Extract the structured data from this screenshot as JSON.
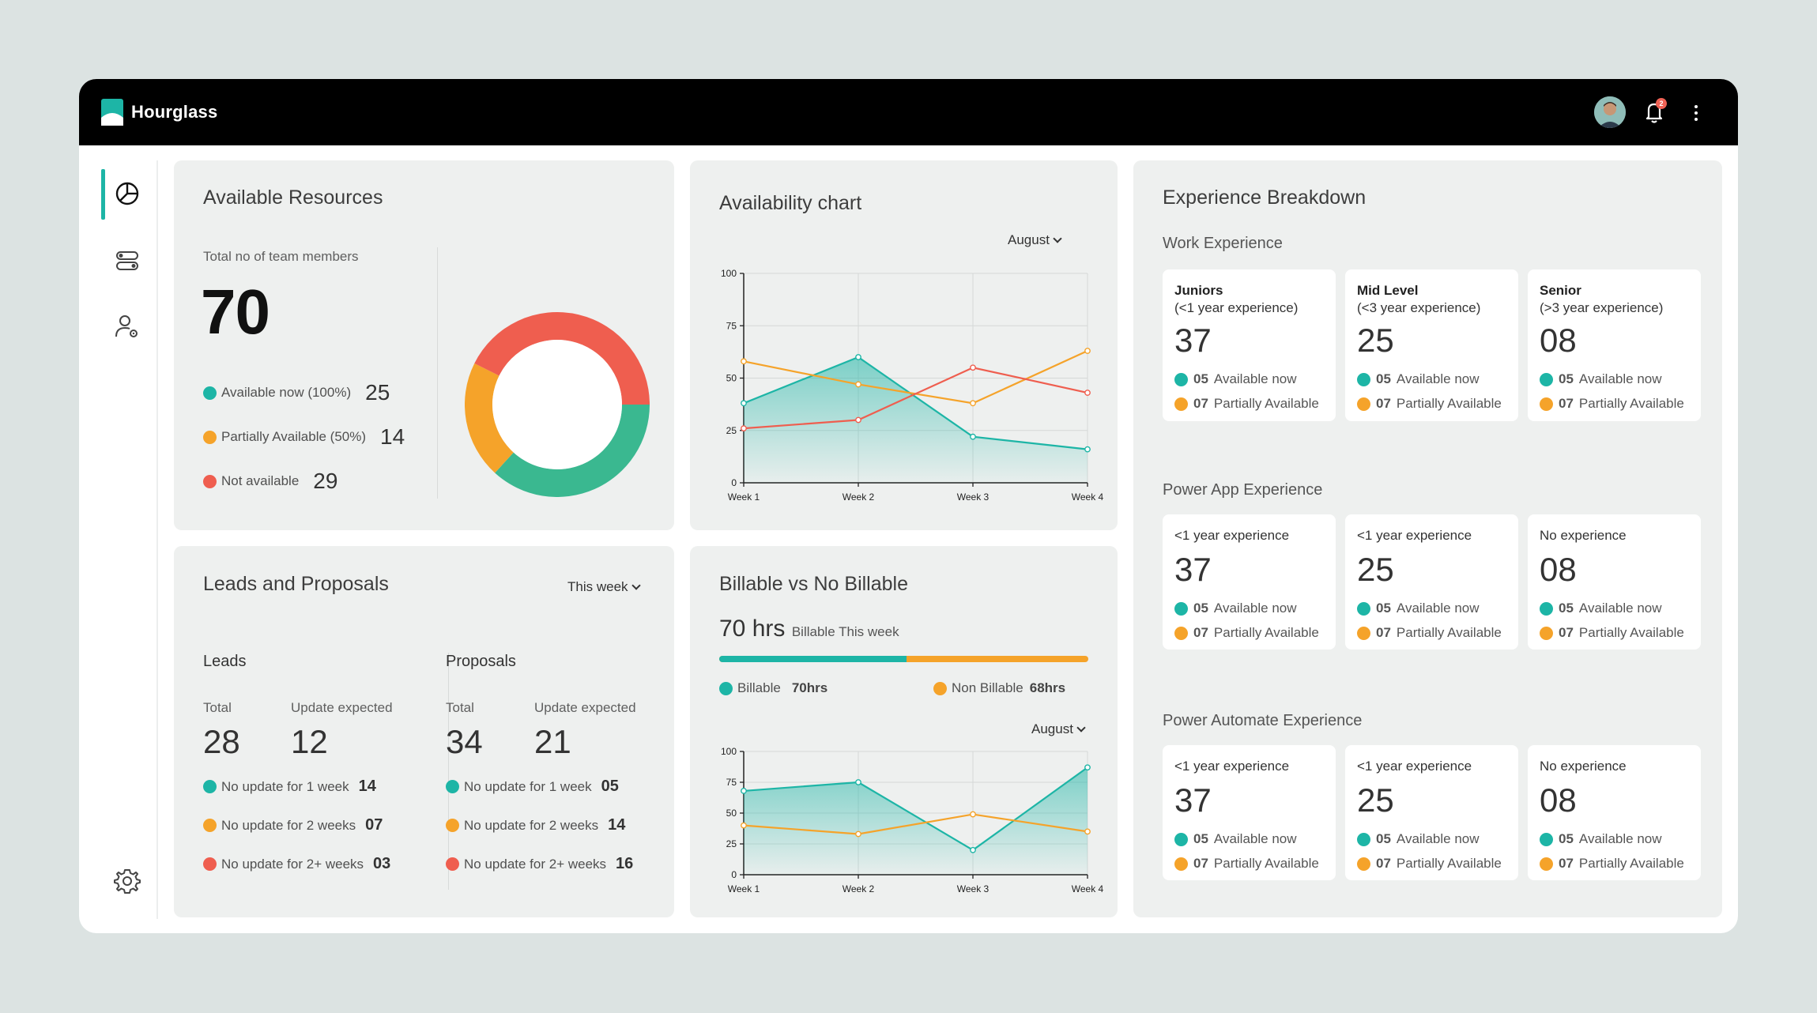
{
  "app": {
    "title": "Hourglass",
    "notification_count": "2"
  },
  "colors": {
    "teal": "#1db5a6",
    "orange": "#f5a32a",
    "red": "#ef5e4f",
    "green": "#3ab890",
    "card": "#eef0ef"
  },
  "sidebar": {
    "items": [
      {
        "icon": "dashboard-icon",
        "active": true
      },
      {
        "icon": "toggles-icon",
        "active": false
      },
      {
        "icon": "user-settings-icon",
        "active": false
      },
      {
        "icon": "gear-icon",
        "active": false
      }
    ]
  },
  "available_resources": {
    "title": "Available Resources",
    "total_label": "Total no of team members",
    "total": "70",
    "legend": [
      {
        "label": "Available now (100%)",
        "value": "25"
      },
      {
        "label": "Partially Available (50%)",
        "value": "14"
      },
      {
        "label": "Not available",
        "value": "29"
      }
    ]
  },
  "availability_chart": {
    "title": "Availability chart",
    "filter": "August"
  },
  "leads": {
    "title": "Leads and Proposals",
    "filter": "This week",
    "leads": {
      "heading": "Leads",
      "total_label": "Total",
      "update_label": "Update expected",
      "total": "28",
      "update": "12",
      "rows": [
        {
          "label": "No update for 1 week",
          "value": "14"
        },
        {
          "label": "No update for 2 weeks",
          "value": "07"
        },
        {
          "label": "No update for 2+ weeks",
          "value": "03"
        }
      ]
    },
    "proposals": {
      "heading": "Proposals",
      "total_label": "Total",
      "update_label": "Update expected",
      "total": "34",
      "update": "21",
      "rows": [
        {
          "label": "No update for 1 week",
          "value": "05"
        },
        {
          "label": "No update for 2 weeks",
          "value": "14"
        },
        {
          "label": "No update for 2+ weeks",
          "value": "16"
        }
      ]
    }
  },
  "billable": {
    "title": "Billable vs No Billable",
    "hours": "70 hrs",
    "hours_caption": "Billable This week",
    "billable_label": "Billable",
    "billable_value": "70hrs",
    "non_label": "Non Billable",
    "non_value": "68hrs",
    "billable_fraction": 0.507,
    "filter": "August"
  },
  "experience": {
    "title": "Experience Breakdown",
    "sections": [
      {
        "title": "Work Experience",
        "boxes": [
          {
            "name": "Juniors",
            "sub": "(<1 year experience)",
            "count": "37",
            "avail": "05",
            "avail_label": "Available now",
            "partial": "07",
            "partial_label": "Partially Available"
          },
          {
            "name": "Mid Level",
            "sub": "(<3 year experience)",
            "count": "25",
            "avail": "05",
            "avail_label": "Available now",
            "partial": "07",
            "partial_label": "Partially Available"
          },
          {
            "name": "Senior",
            "sub": "(>3 year experience)",
            "count": "08",
            "avail": "05",
            "avail_label": "Available now",
            "partial": "07",
            "partial_label": "Partially Available"
          }
        ]
      },
      {
        "title": "Power App Experience",
        "boxes": [
          {
            "sub": "<1 year experience",
            "count": "37",
            "avail": "05",
            "avail_label": "Available now",
            "partial": "07",
            "partial_label": "Partially Available"
          },
          {
            "sub": "<1 year experience",
            "count": "25",
            "avail": "05",
            "avail_label": "Available now",
            "partial": "07",
            "partial_label": "Partially Available"
          },
          {
            "sub": "No experience",
            "count": "08",
            "avail": "05",
            "avail_label": "Available now",
            "partial": "07",
            "partial_label": "Partially Available"
          }
        ]
      },
      {
        "title": "Power Automate Experience",
        "boxes": [
          {
            "sub": "<1 year experience",
            "count": "37",
            "avail": "05",
            "avail_label": "Available now",
            "partial": "07",
            "partial_label": "Partially Available"
          },
          {
            "sub": "<1 year experience",
            "count": "25",
            "avail": "05",
            "avail_label": "Available now",
            "partial": "07",
            "partial_label": "Partially Available"
          },
          {
            "sub": "No experience",
            "count": "08",
            "avail": "05",
            "avail_label": "Available now",
            "partial": "07",
            "partial_label": "Partially Available"
          }
        ]
      }
    ]
  },
  "chart_data": [
    {
      "type": "pie",
      "categories": [
        "Available now (100%)",
        "Partially Available (50%)",
        "Not available"
      ],
      "values": [
        25,
        14,
        29
      ]
    },
    {
      "type": "line",
      "categories": [
        "Week 1",
        "Week 2",
        "Week 3",
        "Week 4"
      ],
      "ylim": [
        0,
        100
      ],
      "yticks": [
        0,
        25,
        50,
        75,
        100
      ],
      "series": [
        {
          "color": "#1db5a6",
          "values": [
            38,
            60,
            22,
            16
          ],
          "fill": true
        },
        {
          "color": "#f5a32a",
          "values": [
            58,
            47,
            38,
            63
          ]
        },
        {
          "color": "#ef5e4f",
          "values": [
            26,
            30,
            55,
            43
          ]
        }
      ]
    },
    {
      "type": "line",
      "categories": [
        "Week 1",
        "Week 2",
        "Week 3",
        "Week 4"
      ],
      "ylim": [
        0,
        100
      ],
      "yticks": [
        0,
        25,
        50,
        75,
        100
      ],
      "series": [
        {
          "color": "#1db5a6",
          "values": [
            68,
            75,
            20,
            87
          ],
          "fill": true
        },
        {
          "color": "#f5a32a",
          "values": [
            40,
            33,
            49,
            35
          ]
        }
      ]
    }
  ]
}
